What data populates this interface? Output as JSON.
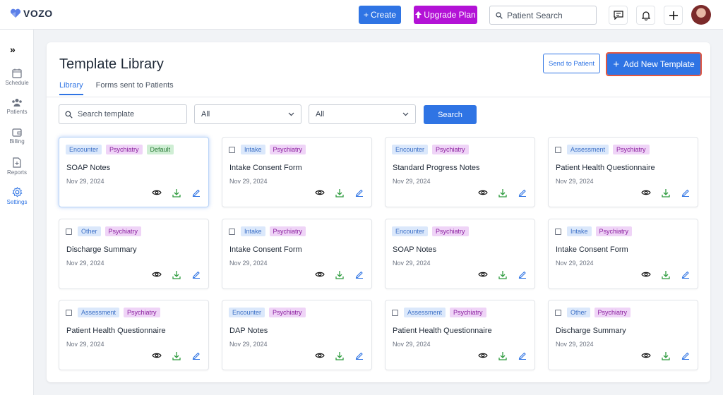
{
  "brand": {
    "name": "VOZO"
  },
  "topbar": {
    "create_label": "Create",
    "upgrade_label": "Upgrade Plan",
    "search_placeholder": "Patient Search"
  },
  "sidebar": {
    "items": [
      {
        "label": "Schedule",
        "icon": "calendar-icon"
      },
      {
        "label": "Patients",
        "icon": "users-icon"
      },
      {
        "label": "Billing",
        "icon": "wallet-icon"
      },
      {
        "label": "Reports",
        "icon": "report-icon"
      },
      {
        "label": "Settings",
        "icon": "gear-icon",
        "active": true
      }
    ]
  },
  "page": {
    "title": "Template Library",
    "send_label": "Send to Patient",
    "add_label": "Add New Template",
    "tabs": [
      {
        "label": "Library",
        "active": true
      },
      {
        "label": "Forms sent to Patients",
        "active": false
      }
    ],
    "filters": {
      "search_placeholder": "Search template",
      "select1": "All",
      "select2": "All",
      "search_button": "Search"
    }
  },
  "colors": {
    "primary": "#2f74e4",
    "upgrade": "#b312d6",
    "highlight": "#e2563f"
  },
  "templates": [
    {
      "tags": [
        "Encounter",
        "Psychiatry",
        "Default"
      ],
      "name": "SOAP Notes",
      "date": "Nov 29, 2024",
      "checkbox": false,
      "selected": true
    },
    {
      "tags": [
        "Intake",
        "Psychiatry"
      ],
      "name": "Intake Consent Form",
      "date": "Nov 29, 2024",
      "checkbox": true
    },
    {
      "tags": [
        "Encounter",
        "Psychiatry"
      ],
      "name": "Standard Progress Notes",
      "date": "Nov 29, 2024",
      "checkbox": false
    },
    {
      "tags": [
        "Assessment",
        "Psychiatry"
      ],
      "name": "Patient Health Questionnaire",
      "date": "Nov 29, 2024",
      "checkbox": true
    },
    {
      "tags": [
        "Other",
        "Psychiatry"
      ],
      "name": "Discharge Summary",
      "date": "Nov 29, 2024",
      "checkbox": true
    },
    {
      "tags": [
        "Intake",
        "Psychiatry"
      ],
      "name": "Intake Consent Form",
      "date": "Nov 29, 2024",
      "checkbox": true
    },
    {
      "tags": [
        "Encounter",
        "Psychiatry"
      ],
      "name": "SOAP Notes",
      "date": "Nov 29, 2024",
      "checkbox": false
    },
    {
      "tags": [
        "Intake",
        "Psychiatry"
      ],
      "name": "Intake Consent Form",
      "date": "Nov 29, 2024",
      "checkbox": true
    },
    {
      "tags": [
        "Assessment",
        "Psychiatry"
      ],
      "name": "Patient Health Questionnaire",
      "date": "Nov 29, 2024",
      "checkbox": true
    },
    {
      "tags": [
        "Encounter",
        "Psychiatry"
      ],
      "name": "DAP Notes",
      "date": "Nov 29, 2024",
      "checkbox": false
    },
    {
      "tags": [
        "Assessment",
        "Psychiatry"
      ],
      "name": "Patient Health Questionnaire",
      "date": "Nov 29, 2024",
      "checkbox": true
    },
    {
      "tags": [
        "Other",
        "Psychiatry"
      ],
      "name": "Discharge Summary",
      "date": "Nov 29, 2024",
      "checkbox": true
    }
  ]
}
